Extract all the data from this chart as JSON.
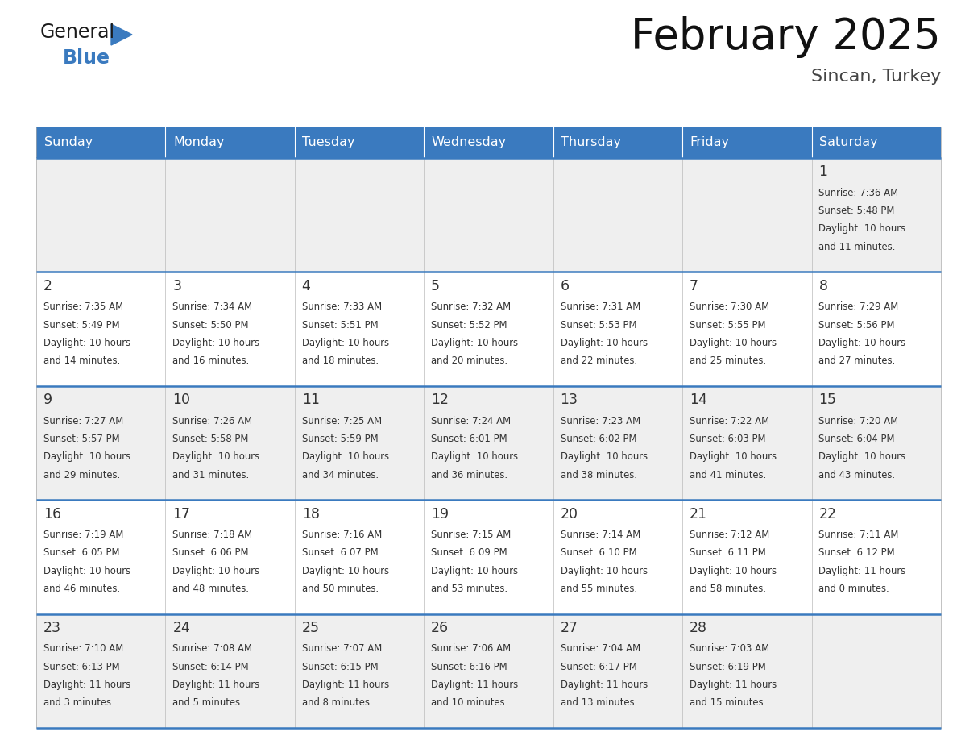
{
  "title": "February 2025",
  "subtitle": "Sincan, Turkey",
  "header_color": "#3a7abf",
  "header_text_color": "#ffffff",
  "row_bg_colors": [
    "#efefef",
    "#ffffff",
    "#efefef",
    "#ffffff",
    "#efefef"
  ],
  "border_color": "#3a7abf",
  "text_color": "#333333",
  "day_headers": [
    "Sunday",
    "Monday",
    "Tuesday",
    "Wednesday",
    "Thursday",
    "Friday",
    "Saturday"
  ],
  "days": [
    {
      "day": 1,
      "col": 6,
      "row": 0,
      "sunrise": "7:36 AM",
      "sunset": "5:48 PM",
      "daylight": "10 hours and 11 minutes."
    },
    {
      "day": 2,
      "col": 0,
      "row": 1,
      "sunrise": "7:35 AM",
      "sunset": "5:49 PM",
      "daylight": "10 hours and 14 minutes."
    },
    {
      "day": 3,
      "col": 1,
      "row": 1,
      "sunrise": "7:34 AM",
      "sunset": "5:50 PM",
      "daylight": "10 hours and 16 minutes."
    },
    {
      "day": 4,
      "col": 2,
      "row": 1,
      "sunrise": "7:33 AM",
      "sunset": "5:51 PM",
      "daylight": "10 hours and 18 minutes."
    },
    {
      "day": 5,
      "col": 3,
      "row": 1,
      "sunrise": "7:32 AM",
      "sunset": "5:52 PM",
      "daylight": "10 hours and 20 minutes."
    },
    {
      "day": 6,
      "col": 4,
      "row": 1,
      "sunrise": "7:31 AM",
      "sunset": "5:53 PM",
      "daylight": "10 hours and 22 minutes."
    },
    {
      "day": 7,
      "col": 5,
      "row": 1,
      "sunrise": "7:30 AM",
      "sunset": "5:55 PM",
      "daylight": "10 hours and 25 minutes."
    },
    {
      "day": 8,
      "col": 6,
      "row": 1,
      "sunrise": "7:29 AM",
      "sunset": "5:56 PM",
      "daylight": "10 hours and 27 minutes."
    },
    {
      "day": 9,
      "col": 0,
      "row": 2,
      "sunrise": "7:27 AM",
      "sunset": "5:57 PM",
      "daylight": "10 hours and 29 minutes."
    },
    {
      "day": 10,
      "col": 1,
      "row": 2,
      "sunrise": "7:26 AM",
      "sunset": "5:58 PM",
      "daylight": "10 hours and 31 minutes."
    },
    {
      "day": 11,
      "col": 2,
      "row": 2,
      "sunrise": "7:25 AM",
      "sunset": "5:59 PM",
      "daylight": "10 hours and 34 minutes."
    },
    {
      "day": 12,
      "col": 3,
      "row": 2,
      "sunrise": "7:24 AM",
      "sunset": "6:01 PM",
      "daylight": "10 hours and 36 minutes."
    },
    {
      "day": 13,
      "col": 4,
      "row": 2,
      "sunrise": "7:23 AM",
      "sunset": "6:02 PM",
      "daylight": "10 hours and 38 minutes."
    },
    {
      "day": 14,
      "col": 5,
      "row": 2,
      "sunrise": "7:22 AM",
      "sunset": "6:03 PM",
      "daylight": "10 hours and 41 minutes."
    },
    {
      "day": 15,
      "col": 6,
      "row": 2,
      "sunrise": "7:20 AM",
      "sunset": "6:04 PM",
      "daylight": "10 hours and 43 minutes."
    },
    {
      "day": 16,
      "col": 0,
      "row": 3,
      "sunrise": "7:19 AM",
      "sunset": "6:05 PM",
      "daylight": "10 hours and 46 minutes."
    },
    {
      "day": 17,
      "col": 1,
      "row": 3,
      "sunrise": "7:18 AM",
      "sunset": "6:06 PM",
      "daylight": "10 hours and 48 minutes."
    },
    {
      "day": 18,
      "col": 2,
      "row": 3,
      "sunrise": "7:16 AM",
      "sunset": "6:07 PM",
      "daylight": "10 hours and 50 minutes."
    },
    {
      "day": 19,
      "col": 3,
      "row": 3,
      "sunrise": "7:15 AM",
      "sunset": "6:09 PM",
      "daylight": "10 hours and 53 minutes."
    },
    {
      "day": 20,
      "col": 4,
      "row": 3,
      "sunrise": "7:14 AM",
      "sunset": "6:10 PM",
      "daylight": "10 hours and 55 minutes."
    },
    {
      "day": 21,
      "col": 5,
      "row": 3,
      "sunrise": "7:12 AM",
      "sunset": "6:11 PM",
      "daylight": "10 hours and 58 minutes."
    },
    {
      "day": 22,
      "col": 6,
      "row": 3,
      "sunrise": "7:11 AM",
      "sunset": "6:12 PM",
      "daylight": "11 hours and 0 minutes."
    },
    {
      "day": 23,
      "col": 0,
      "row": 4,
      "sunrise": "7:10 AM",
      "sunset": "6:13 PM",
      "daylight": "11 hours and 3 minutes."
    },
    {
      "day": 24,
      "col": 1,
      "row": 4,
      "sunrise": "7:08 AM",
      "sunset": "6:14 PM",
      "daylight": "11 hours and 5 minutes."
    },
    {
      "day": 25,
      "col": 2,
      "row": 4,
      "sunrise": "7:07 AM",
      "sunset": "6:15 PM",
      "daylight": "11 hours and 8 minutes."
    },
    {
      "day": 26,
      "col": 3,
      "row": 4,
      "sunrise": "7:06 AM",
      "sunset": "6:16 PM",
      "daylight": "11 hours and 10 minutes."
    },
    {
      "day": 27,
      "col": 4,
      "row": 4,
      "sunrise": "7:04 AM",
      "sunset": "6:17 PM",
      "daylight": "11 hours and 13 minutes."
    },
    {
      "day": 28,
      "col": 5,
      "row": 4,
      "sunrise": "7:03 AM",
      "sunset": "6:19 PM",
      "daylight": "11 hours and 15 minutes."
    }
  ],
  "logo_general_color": "#1a1a1a",
  "logo_blue_color": "#3a7abf",
  "fig_width": 11.88,
  "fig_height": 9.18,
  "dpi": 100
}
